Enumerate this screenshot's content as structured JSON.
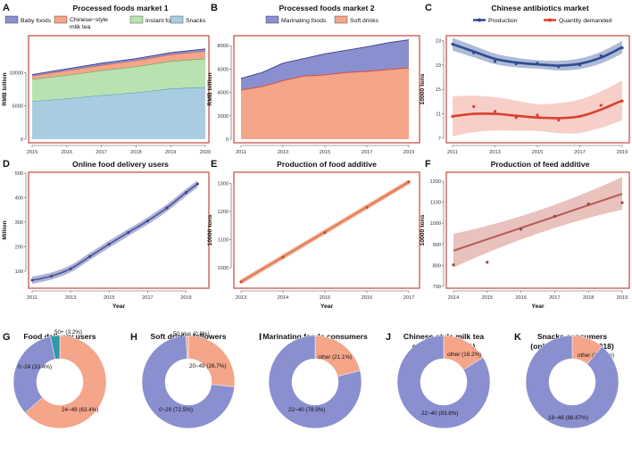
{
  "colors": {
    "purple": "#8a8fd0",
    "salmon": "#f4a58a",
    "green": "#b8e3b0",
    "lightblue": "#a9cde0",
    "frame": "#c9544a",
    "blue": "#2c4d8e",
    "red": "#d9402e",
    "orange": "#e4784f",
    "brick": "#b55b53",
    "teal": "#2e9aa6"
  },
  "chart_data": [
    {
      "panel": "A",
      "type": "area",
      "title": "Processed foods market 1",
      "ylabel": "RMB billion",
      "xlabel": "",
      "ylim": [
        0,
        15000
      ],
      "yticks": [
        0,
        5000,
        10000
      ],
      "x": [
        2015,
        2016,
        2017,
        2018,
        2019,
        2020
      ],
      "series": [
        {
          "name": "Snacks",
          "values": [
            5700,
            6100,
            6600,
            7000,
            7600,
            7800
          ]
        },
        {
          "name": "Instant foods",
          "values": [
            3300,
            3500,
            3700,
            3900,
            4100,
            4300
          ]
        },
        {
          "name": "Chinese-style milk tea",
          "values": [
            500,
            700,
            800,
            900,
            1000,
            1100
          ]
        },
        {
          "name": "Baby foods",
          "values": [
            200,
            250,
            300,
            300,
            300,
            350
          ]
        }
      ],
      "legend": [
        "Baby foods",
        "Chinese-style milk tea",
        "Instant foods",
        "Snacks"
      ]
    },
    {
      "panel": "B",
      "type": "area",
      "title": "Processed foods market 2",
      "ylabel": "RMB billion",
      "xlabel": "",
      "ylim": [
        0,
        8700
      ],
      "yticks": [
        0,
        2000,
        4000,
        6000,
        8000
      ],
      "xticks": [
        2011,
        2013,
        2015,
        2017,
        2019
      ],
      "x": [
        2011,
        2012,
        2013,
        2014,
        2015,
        2016,
        2017,
        2018,
        2019
      ],
      "series": [
        {
          "name": "Soft drinks",
          "values": [
            4200,
            4500,
            5000,
            5400,
            5500,
            5700,
            5800,
            5950,
            6100
          ]
        },
        {
          "name": "Marinating foods",
          "values": [
            1000,
            1200,
            1500,
            1500,
            1800,
            1900,
            2100,
            2300,
            2400
          ]
        }
      ],
      "legend": [
        "Marinating foods",
        "Soft drinks"
      ]
    },
    {
      "panel": "C",
      "type": "line",
      "title": "Chinese antibiotics market",
      "ylabel": "10000 tons",
      "xlabel": "",
      "ylim": [
        7,
        23.5
      ],
      "yticks": [
        7,
        11,
        15,
        19,
        23
      ],
      "xticks": [
        2011,
        2013,
        2015,
        2017,
        2019
      ],
      "legend": [
        "Production",
        "Quantity demanded"
      ],
      "series": [
        {
          "name": "Production",
          "x": [
            2011,
            2012,
            2013,
            2014,
            2015,
            2016,
            2017,
            2018,
            2019
          ],
          "values": [
            22.4,
            21.0,
            19.6,
            19.2,
            19.3,
            18.7,
            19.0,
            20.5,
            21.8
          ],
          "fit": [
            22.4,
            21.2,
            20.0,
            19.4,
            19.1,
            18.9,
            19.2,
            20.2,
            21.9
          ]
        },
        {
          "name": "Quantity demanded",
          "x": [
            2011,
            2012,
            2013,
            2014,
            2015,
            2016,
            2017,
            2018,
            2019
          ],
          "values": [
            10.6,
            12.2,
            11.4,
            10.4,
            10.8,
            10.0,
            10.6,
            12.4,
            13.1
          ],
          "fit": [
            10.6,
            11.0,
            11.0,
            10.7,
            10.4,
            10.3,
            10.6,
            11.7,
            13.2
          ]
        }
      ]
    },
    {
      "panel": "D",
      "type": "line",
      "title": "Online food delivery users",
      "ylabel": "Million",
      "xlabel": "Year",
      "ylim": [
        45,
        500
      ],
      "yticks": [
        100,
        200,
        300,
        400,
        500
      ],
      "xticks": [
        2011,
        2013,
        2015,
        2017,
        2019
      ],
      "series": [
        {
          "name": "Users",
          "x": [
            2011,
            2012,
            2013,
            2014,
            2015,
            2016,
            2017,
            2018,
            2019,
            2019.6
          ],
          "values": [
            63,
            80,
            110,
            160,
            210,
            258,
            305,
            358,
            421,
            456
          ]
        }
      ]
    },
    {
      "panel": "E",
      "type": "line",
      "title": "Production of food additive",
      "ylabel": "10000 tons",
      "xlabel": "Year",
      "ylim": [
        940,
        1330
      ],
      "yticks": [
        1000,
        1100,
        1200,
        1300
      ],
      "xticks": [
        2013,
        2014,
        2015,
        2016,
        2017
      ],
      "series": [
        {
          "name": "Production",
          "x": [
            2013,
            2014,
            2015,
            2016,
            2017
          ],
          "values": [
            950,
            1038,
            1125,
            1215,
            1305
          ]
        }
      ]
    },
    {
      "panel": "F",
      "type": "line",
      "title": "Production of feed additive",
      "ylabel": "10000 tons",
      "xlabel": "Year",
      "ylim": [
        700,
        1230
      ],
      "yticks": [
        700,
        800,
        900,
        1000,
        1100,
        1200
      ],
      "xticks": [
        2014,
        2015,
        2016,
        2017,
        2018,
        2019
      ],
      "series": [
        {
          "name": "Production",
          "x": [
            2014,
            2015,
            2016,
            2017,
            2018,
            2019
          ],
          "values": [
            803,
            815,
            972,
            1033,
            1092,
            1098
          ],
          "fit": [
            870,
            1140
          ]
        }
      ]
    },
    {
      "panel": "G",
      "type": "pie",
      "title": [
        "Food delivery users",
        "(2015)"
      ],
      "slices": [
        {
          "label": "24~49 (63.4%)",
          "value": 63.4,
          "color": "salmon"
        },
        {
          "label": "0~24 (33.4%)",
          "value": 33.4,
          "color": "purple"
        },
        {
          "label": "50+ (3.2%)",
          "value": 3.2,
          "color": "teal"
        }
      ]
    },
    {
      "panel": "H",
      "type": "pie",
      "title": [
        "Soft drinks followers",
        "(2016)"
      ],
      "slices": [
        {
          "label": "20~49 (26.7%)",
          "value": 26.7,
          "color": "salmon"
        },
        {
          "label": "0~29 (72.5%)",
          "value": 72.5,
          "color": "purple"
        },
        {
          "label": "50 plus (0.8%)",
          "value": 0.8,
          "color": "salmon"
        }
      ]
    },
    {
      "panel": "I",
      "type": "pie",
      "title": [
        "Marinating foods consumers",
        "(2021)"
      ],
      "slices": [
        {
          "label": "other (21.1%)",
          "value": 21.1,
          "color": "salmon"
        },
        {
          "label": "22~40 (78.9%)",
          "value": 78.9,
          "color": "purple"
        }
      ]
    },
    {
      "panel": "J",
      "type": "pie",
      "title": [
        "Chinese-style milk tea",
        "consumers(2021)"
      ],
      "slices": [
        {
          "label": "other (16.2%)",
          "value": 16.2,
          "color": "salmon"
        },
        {
          "label": "22~40 (83.8%)",
          "value": 83.8,
          "color": "purple"
        }
      ]
    },
    {
      "panel": "K",
      "type": "pie",
      "title": [
        "Snacks consumers",
        "(online shopping 2018)"
      ],
      "slices": [
        {
          "label": "other (11.13%)",
          "value": 11.13,
          "color": "salmon"
        },
        {
          "label": "18~48 (88.87%)",
          "value": 88.87,
          "color": "purple"
        }
      ]
    }
  ]
}
